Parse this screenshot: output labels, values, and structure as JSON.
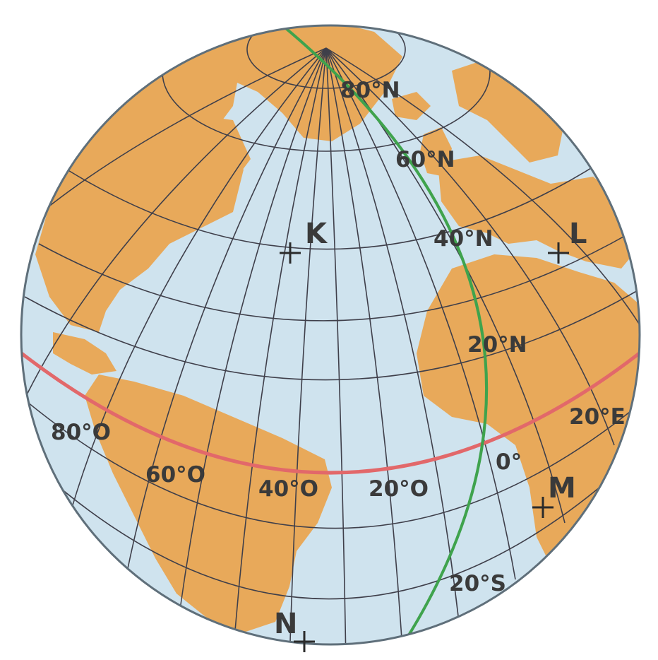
{
  "map": {
    "colors": {
      "ocean": "#cfe3ee",
      "land": "#e8a95a",
      "grid": "#3f3f4a",
      "equator": "#e2686a",
      "prime_meridian": "#3fa34d",
      "outline": "#5f6f7a",
      "marker": "#2b2b2b",
      "background": "#ffffff"
    },
    "latitude_labels": [
      {
        "id": "lat-80n",
        "text": "80°N"
      },
      {
        "id": "lat-60n",
        "text": "60°N"
      },
      {
        "id": "lat-40n",
        "text": "40°N"
      },
      {
        "id": "lat-20n",
        "text": "20°N"
      },
      {
        "id": "lat-20s",
        "text": "20°S"
      }
    ],
    "longitude_labels": [
      {
        "id": "lon-80o",
        "text": "80°O"
      },
      {
        "id": "lon-60o",
        "text": "60°O"
      },
      {
        "id": "lon-40o",
        "text": "40°O"
      },
      {
        "id": "lon-20o",
        "text": "20°O"
      },
      {
        "id": "lon-0",
        "text": "0°"
      },
      {
        "id": "lon-20e",
        "text": "20°E"
      }
    ],
    "points": [
      {
        "id": "point-k",
        "label": "K"
      },
      {
        "id": "point-l",
        "label": "L"
      },
      {
        "id": "point-m",
        "label": "M"
      },
      {
        "id": "point-n",
        "label": "N"
      }
    ]
  }
}
